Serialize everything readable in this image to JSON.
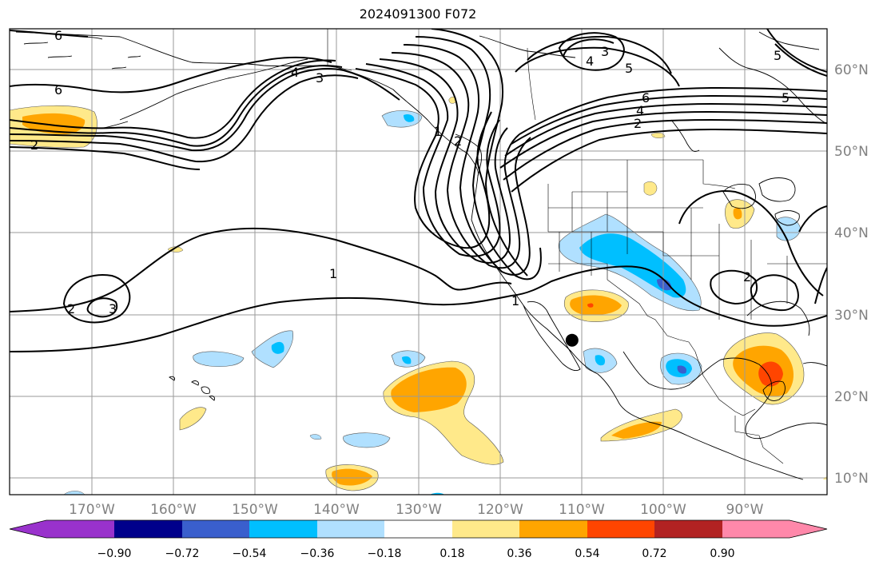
{
  "figure": {
    "title": "2024091300 F072"
  },
  "map": {
    "projection": "equirectangular",
    "lon_range": [
      -180,
      -80
    ],
    "lat_range": [
      8,
      65
    ],
    "lon_labels": [
      "170°W",
      "160°W",
      "150°W",
      "140°W",
      "130°W",
      "120°W",
      "110°W",
      "100°W",
      "90°W"
    ],
    "lat_labels": [
      "60°N",
      "50°N",
      "40°N",
      "30°N",
      "20°N",
      "10°N"
    ],
    "label_color": "#808080",
    "grid_color": "#9a9a9a",
    "marker": {
      "name": "location-marker",
      "lon": -111.2,
      "lat": 26.9,
      "color": "#000000"
    }
  },
  "contour_labels": [
    "6",
    "6",
    "2",
    "4",
    "3",
    "3",
    "4",
    "5",
    "5",
    "5",
    "6",
    "4",
    "2",
    "1",
    "1",
    "2",
    "3",
    "2",
    "1",
    "2"
  ],
  "colorbar": {
    "levels": [
      "−0.90",
      "−0.72",
      "−0.54",
      "−0.36",
      "−0.18",
      "0.18",
      "0.36",
      "0.54",
      "0.72",
      "0.90"
    ],
    "colors": [
      "#9932cc",
      "#00008b",
      "#3a5fcd",
      "#00bfff",
      "#b0e0ff",
      "#ffffff",
      "#ffe98a",
      "#ffa500",
      "#ff4500",
      "#b22222",
      "#ff88aa"
    ]
  }
}
